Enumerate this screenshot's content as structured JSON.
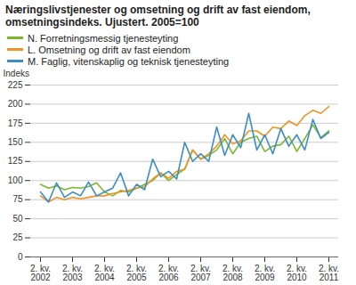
{
  "chart_data": {
    "type": "line",
    "title": "Næringslivstjenester og omsetning og drift av fast eiendom, omsetningsindeks. Ujustert. 2005=100",
    "y_label": "Indeks",
    "categories": [
      "2. kv. 2002",
      null,
      null,
      null,
      "2. kv. 2003",
      null,
      null,
      null,
      "2. kv. 2004",
      null,
      null,
      null,
      "2. kv. 2005",
      null,
      null,
      null,
      "2. kv. 2006",
      null,
      null,
      null,
      "2. kv. 2007",
      null,
      null,
      null,
      "2. kv. 2008",
      null,
      null,
      null,
      "2. kv. 2009",
      null,
      null,
      null,
      "2. kv. 2010",
      null,
      null,
      null,
      "2. kv. 2011"
    ],
    "series": [
      {
        "name": "N. Forretningsmessig tjenesteyting",
        "color": "#7cb82f",
        "values": [
          95,
          90,
          93,
          88,
          91,
          90,
          92,
          97,
          85,
          80,
          87,
          85,
          90,
          95,
          100,
          110,
          100,
          108,
          115,
          140,
          128,
          133,
          140,
          155,
          135,
          150,
          155,
          158,
          138,
          145,
          147,
          158,
          138,
          155,
          173,
          156,
          165
        ]
      },
      {
        "name": "L. Omsetning og drift av fast eiendom",
        "color": "#f39325",
        "values": [
          80,
          72,
          78,
          75,
          78,
          76,
          78,
          80,
          80,
          83,
          85,
          87,
          90,
          92,
          102,
          110,
          103,
          112,
          115,
          140,
          128,
          135,
          145,
          160,
          148,
          152,
          165,
          165,
          158,
          170,
          168,
          178,
          172,
          185,
          192,
          188,
          197
        ]
      },
      {
        "name": "M. Faglig, vitenskaplig og teknisk tjenesteyting",
        "color": "#3b8dc5",
        "values": [
          85,
          72,
          97,
          78,
          85,
          80,
          98,
          80,
          85,
          90,
          110,
          80,
          95,
          88,
          128,
          105,
          112,
          102,
          150,
          125,
          135,
          125,
          170,
          133,
          160,
          143,
          188,
          140,
          160,
          135,
          168,
          145,
          160,
          140,
          180,
          155,
          163
        ]
      }
    ],
    "ylim": [
      0,
      225
    ],
    "yticks": [
      0,
      25,
      50,
      75,
      100,
      125,
      150,
      175,
      200,
      225
    ],
    "grid": true,
    "legend": "top-left"
  }
}
